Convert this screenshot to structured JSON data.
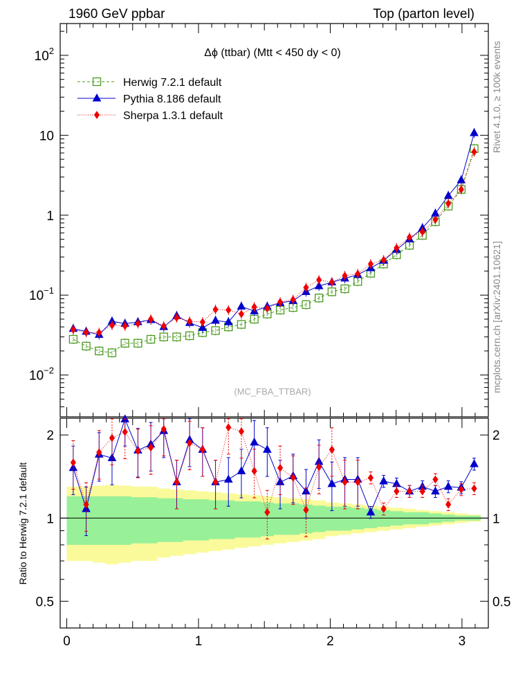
{
  "header": {
    "left": "1960 GeV ppbar",
    "right": "Top (parton level)"
  },
  "side": {
    "rivet": "Rivet 4.1.0, ≥ 100k events",
    "mcplots": "mcplots.cern.ch [arXiv:2401.10621]"
  },
  "colors": {
    "herwig": "#4a9a1e",
    "pythia": "#0000cc",
    "sherpa": "#ee0000",
    "band_inner": "#98f098",
    "band_outer": "#fafa9a"
  },
  "chart_data": [
    {
      "type": "line",
      "title": "Δϕ (ttbar) (Mtt < 450 dy < 0)",
      "analysis": "(MC_FBA_TTBAR)",
      "yscale": "log",
      "ylim": [
        0.003,
        250
      ],
      "yticks": [
        {
          "value": 0.01,
          "base": "10",
          "exp": "−2"
        },
        {
          "value": 0.1,
          "base": "10",
          "exp": "−1"
        },
        {
          "value": 1,
          "base": "1",
          "exp": ""
        },
        {
          "value": 10,
          "base": "10",
          "exp": ""
        },
        {
          "value": 100,
          "base": "10",
          "exp": "2"
        }
      ],
      "legend_position": "top-left",
      "x": [
        0.0491,
        0.1473,
        0.2454,
        0.3436,
        0.4418,
        0.54,
        0.6381,
        0.7363,
        0.8345,
        0.9327,
        1.0308,
        1.129,
        1.2272,
        1.3254,
        1.4235,
        1.5217,
        1.6199,
        1.7181,
        1.8162,
        1.9144,
        2.0126,
        2.1108,
        2.2089,
        2.3071,
        2.4053,
        2.5035,
        2.6016,
        2.6998,
        2.798,
        2.8962,
        2.9943,
        3.0925
      ],
      "series": [
        {
          "name": "Herwig 7.2.1 default",
          "marker": "open-square",
          "color_key": "herwig",
          "values": [
            0.028,
            0.023,
            0.02,
            0.019,
            0.025,
            0.025,
            0.028,
            0.03,
            0.03,
            0.031,
            0.034,
            0.036,
            0.04,
            0.043,
            0.05,
            0.058,
            0.065,
            0.07,
            0.076,
            0.092,
            0.11,
            0.12,
            0.148,
            0.188,
            0.245,
            0.32,
            0.42,
            0.56,
            0.83,
            1.3,
            2.1,
            6.8
          ]
        },
        {
          "name": "Pythia 8.186 default",
          "marker": "triangle",
          "color_key": "pythia",
          "values": [
            0.038,
            0.035,
            0.032,
            0.047,
            0.044,
            0.046,
            0.049,
            0.04,
            0.055,
            0.045,
            0.039,
            0.048,
            0.046,
            0.072,
            0.063,
            0.072,
            0.08,
            0.085,
            0.11,
            0.13,
            0.145,
            0.162,
            0.18,
            0.218,
            0.27,
            0.37,
            0.5,
            0.69,
            1.05,
            1.75,
            2.75,
            10.7
          ]
        },
        {
          "name": "Sherpa 1.3.1 default",
          "marker": "diamond",
          "color_key": "sherpa",
          "values": [
            0.037,
            0.034,
            0.034,
            0.042,
            0.041,
            0.044,
            0.05,
            0.041,
            0.052,
            0.047,
            0.046,
            0.066,
            0.065,
            0.058,
            0.071,
            0.068,
            0.082,
            0.088,
            0.124,
            0.155,
            0.145,
            0.175,
            0.185,
            0.245,
            0.275,
            0.39,
            0.53,
            0.62,
            0.88,
            1.4,
            2.1,
            6.2
          ]
        }
      ]
    },
    {
      "type": "line",
      "ylabel": "Ratio to Herwig 7.2.1 default",
      "ylim": [
        0.4,
        2.3
      ],
      "yticks": [
        "0.5",
        "1",
        "2"
      ],
      "xlim": [
        -0.05,
        3.2
      ],
      "xticks": [
        "0",
        "1",
        "2",
        "3"
      ],
      "x": [
        0.0491,
        0.1473,
        0.2454,
        0.3436,
        0.4418,
        0.54,
        0.6381,
        0.7363,
        0.8345,
        0.9327,
        1.0308,
        1.129,
        1.2272,
        1.3254,
        1.4235,
        1.5217,
        1.6199,
        1.7181,
        1.8162,
        1.9144,
        2.0126,
        2.1108,
        2.2089,
        2.3071,
        2.4053,
        2.5035,
        2.6016,
        2.6998,
        2.798,
        2.8962,
        2.9943,
        3.0925
      ],
      "series": [
        {
          "name": "Pythia 8.186 default",
          "color_key": "pythia",
          "values": [
            1.52,
            1.08,
            1.7,
            1.65,
            2.28,
            1.76,
            1.85,
            2.07,
            1.35,
            1.92,
            1.77,
            1.35,
            1.38,
            1.48,
            1.88,
            1.77,
            1.35,
            1.42,
            1.25,
            1.6,
            1.33,
            1.38,
            1.38,
            1.05,
            1.36,
            1.33,
            1.25,
            1.3,
            1.25,
            1.3,
            1.29,
            1.57
          ]
        },
        {
          "name": "Sherpa 1.3.1 default",
          "color_key": "sherpa",
          "values": [
            1.59,
            1.12,
            1.73,
            1.95,
            2.05,
            1.75,
            1.8,
            2.1,
            1.35,
            1.87,
            1.77,
            1.35,
            2.13,
            2.06,
            1.48,
            1.05,
            1.52,
            1.4,
            1.07,
            1.53,
            1.77,
            1.35,
            1.35,
            1.4,
            1.08,
            1.25,
            1.25,
            1.25,
            1.38,
            1.12,
            1.27,
            1.28
          ]
        }
      ],
      "band_inner_halfwidth": [
        0.2,
        0.2,
        0.2,
        0.2,
        0.2,
        0.19,
        0.19,
        0.18,
        0.18,
        0.17,
        0.17,
        0.16,
        0.16,
        0.15,
        0.15,
        0.14,
        0.13,
        0.13,
        0.12,
        0.11,
        0.1,
        0.1,
        0.09,
        0.08,
        0.07,
        0.06,
        0.05,
        0.05,
        0.04,
        0.03,
        0.02,
        0.02
      ],
      "band_outer_halfwidth": [
        0.3,
        0.3,
        0.31,
        0.32,
        0.31,
        0.3,
        0.3,
        0.28,
        0.27,
        0.26,
        0.25,
        0.24,
        0.23,
        0.22,
        0.21,
        0.2,
        0.19,
        0.18,
        0.17,
        0.16,
        0.14,
        0.13,
        0.12,
        0.11,
        0.1,
        0.09,
        0.08,
        0.07,
        0.06,
        0.05,
        0.04,
        0.03
      ]
    }
  ]
}
